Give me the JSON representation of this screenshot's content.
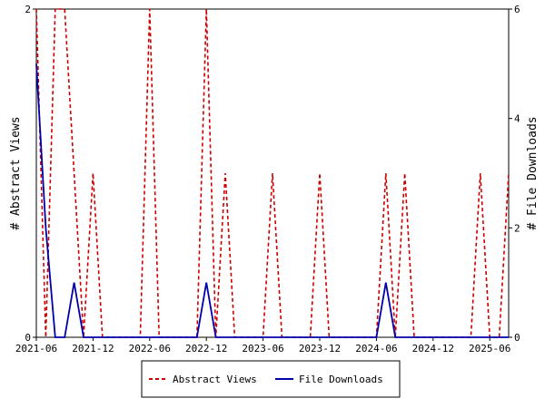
{
  "chart_data": {
    "type": "line",
    "y_left_label": "# Abstract Views",
    "y_right_label": "# File Downloads",
    "y_left_range": [
      0,
      2
    ],
    "y_right_range": [
      0,
      6
    ],
    "y_left_ticks": [
      "0",
      "2"
    ],
    "y_right_ticks": [
      "0",
      "2",
      "4",
      "6"
    ],
    "x_range": [
      "2021-06",
      "2025-08"
    ],
    "x_ticks": [
      "2021-06",
      "2021-12",
      "2022-06",
      "2022-12",
      "2023-06",
      "2023-12",
      "2024-06",
      "2024-12",
      "2025-06"
    ],
    "grid": false,
    "legend_position": "bottom",
    "x": [
      "2021-06",
      "2021-07",
      "2021-08",
      "2021-09",
      "2021-10",
      "2021-11",
      "2021-12",
      "2022-01",
      "2022-02",
      "2022-03",
      "2022-04",
      "2022-05",
      "2022-06",
      "2022-07",
      "2022-08",
      "2022-09",
      "2022-10",
      "2022-11",
      "2022-12",
      "2023-01",
      "2023-02",
      "2023-03",
      "2023-04",
      "2023-05",
      "2023-06",
      "2023-07",
      "2023-08",
      "2023-09",
      "2023-10",
      "2023-11",
      "2023-12",
      "2024-01",
      "2024-02",
      "2024-03",
      "2024-04",
      "2024-05",
      "2024-06",
      "2024-07",
      "2024-08",
      "2024-09",
      "2024-10",
      "2024-11",
      "2024-12",
      "2025-01",
      "2025-02",
      "2025-03",
      "2025-04",
      "2025-05",
      "2025-06",
      "2025-07",
      "2025-08"
    ],
    "series": [
      {
        "name": "Abstract Views",
        "axis": "left",
        "color": "#cc0000",
        "dash": "dashed",
        "values": [
          2,
          0,
          2,
          2,
          1,
          0,
          1,
          0,
          0,
          0,
          0,
          0,
          2,
          0,
          0,
          0,
          0,
          0,
          2,
          0,
          1,
          0,
          0,
          0,
          0,
          1,
          0,
          0,
          0,
          0,
          1,
          0,
          0,
          0,
          0,
          0,
          0,
          1,
          0,
          1,
          0,
          0,
          0,
          0,
          0,
          0,
          0,
          1,
          0,
          0,
          1
        ]
      },
      {
        "name": "File Downloads",
        "axis": "right",
        "color": "#0000aa",
        "dash": "solid",
        "values": [
          5,
          2,
          0,
          0,
          1,
          0,
          0,
          0,
          0,
          0,
          0,
          0,
          0,
          0,
          0,
          0,
          0,
          0,
          1,
          0,
          0,
          0,
          0,
          0,
          0,
          0,
          0,
          0,
          0,
          0,
          0,
          0,
          0,
          0,
          0,
          0,
          0,
          1,
          0,
          0,
          0,
          0,
          0,
          0,
          0,
          0,
          0,
          0,
          0,
          0,
          0
        ]
      }
    ]
  }
}
